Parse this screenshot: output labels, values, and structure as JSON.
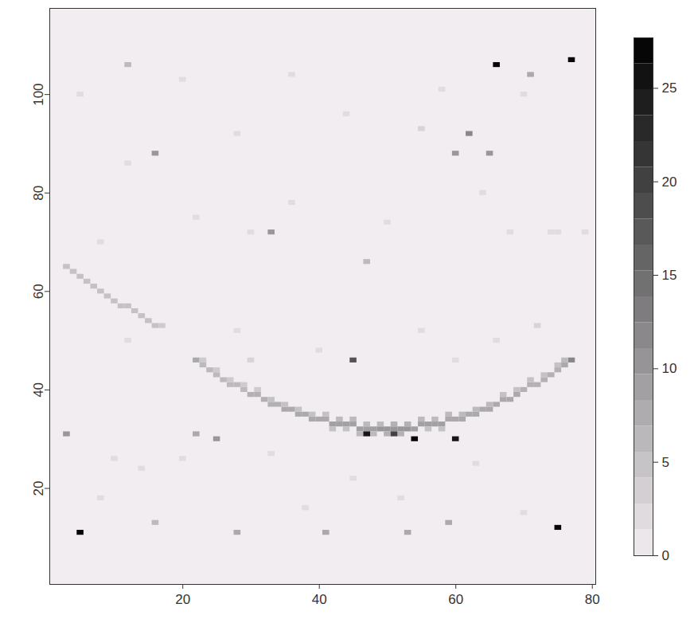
{
  "chart_data": {
    "type": "heatmap",
    "xlim": [
      0.5,
      80.5
    ],
    "ylim": [
      0.5,
      117.5
    ],
    "xticks": [
      20,
      40,
      60,
      80
    ],
    "yticks": [
      20,
      40,
      60,
      80,
      100
    ],
    "colorbar_lim": [
      0,
      27.7
    ],
    "colorbar_ticks": [
      0,
      5,
      10,
      15,
      20,
      25
    ],
    "cells": [
      [
        22,
        46,
        8
      ],
      [
        23,
        45,
        6
      ],
      [
        24,
        44,
        6
      ],
      [
        25,
        43,
        6
      ],
      [
        26,
        42,
        6
      ],
      [
        27,
        41,
        6
      ],
      [
        28,
        41,
        6
      ],
      [
        29,
        40,
        6
      ],
      [
        30,
        39,
        7
      ],
      [
        31,
        39,
        7
      ],
      [
        32,
        38,
        7
      ],
      [
        33,
        37,
        7
      ],
      [
        34,
        37,
        7
      ],
      [
        35,
        36,
        8
      ],
      [
        36,
        36,
        8
      ],
      [
        37,
        35,
        8
      ],
      [
        38,
        35,
        8
      ],
      [
        39,
        34,
        8
      ],
      [
        40,
        34,
        8
      ],
      [
        41,
        34,
        8
      ],
      [
        42,
        33,
        9
      ],
      [
        43,
        33,
        9
      ],
      [
        44,
        33,
        9
      ],
      [
        45,
        33,
        9
      ],
      [
        46,
        32,
        9
      ],
      [
        47,
        32,
        9
      ],
      [
        48,
        32,
        9
      ],
      [
        49,
        32,
        10
      ],
      [
        50,
        32,
        10
      ],
      [
        51,
        32,
        10
      ],
      [
        52,
        32,
        10
      ],
      [
        53,
        32,
        10
      ],
      [
        54,
        32,
        9
      ],
      [
        55,
        33,
        9
      ],
      [
        56,
        33,
        9
      ],
      [
        57,
        33,
        9
      ],
      [
        58,
        33,
        9
      ],
      [
        59,
        34,
        8
      ],
      [
        60,
        34,
        8
      ],
      [
        61,
        34,
        8
      ],
      [
        62,
        35,
        8
      ],
      [
        63,
        35,
        8
      ],
      [
        64,
        36,
        8
      ],
      [
        65,
        36,
        8
      ],
      [
        66,
        37,
        8
      ],
      [
        67,
        38,
        8
      ],
      [
        68,
        38,
        8
      ],
      [
        69,
        39,
        8
      ],
      [
        70,
        40,
        7
      ],
      [
        71,
        41,
        7
      ],
      [
        72,
        41,
        7
      ],
      [
        73,
        42,
        7
      ],
      [
        74,
        43,
        7
      ],
      [
        75,
        44,
        7
      ],
      [
        76,
        45,
        8
      ],
      [
        77,
        46,
        12
      ],
      [
        23,
        46,
        4
      ],
      [
        25,
        44,
        4
      ],
      [
        27,
        42,
        4
      ],
      [
        29,
        41,
        4
      ],
      [
        31,
        40,
        4
      ],
      [
        33,
        38,
        5
      ],
      [
        35,
        37,
        5
      ],
      [
        37,
        36,
        5
      ],
      [
        39,
        35,
        5
      ],
      [
        41,
        35,
        5
      ],
      [
        43,
        34,
        6
      ],
      [
        45,
        34,
        6
      ],
      [
        47,
        33,
        6
      ],
      [
        49,
        33,
        6
      ],
      [
        51,
        33,
        7
      ],
      [
        53,
        33,
        7
      ],
      [
        55,
        34,
        6
      ],
      [
        57,
        34,
        6
      ],
      [
        59,
        35,
        6
      ],
      [
        61,
        35,
        6
      ],
      [
        63,
        36,
        6
      ],
      [
        65,
        37,
        6
      ],
      [
        67,
        39,
        5
      ],
      [
        69,
        40,
        5
      ],
      [
        71,
        42,
        5
      ],
      [
        73,
        43,
        5
      ],
      [
        75,
        45,
        5
      ],
      [
        76,
        46,
        6
      ],
      [
        42,
        32,
        5
      ],
      [
        44,
        32,
        5
      ],
      [
        46,
        31,
        6
      ],
      [
        48,
        31,
        6
      ],
      [
        50,
        31,
        7
      ],
      [
        52,
        31,
        7
      ],
      [
        56,
        32,
        5
      ],
      [
        58,
        32,
        5
      ],
      [
        3,
        65,
        5
      ],
      [
        4,
        64,
        5
      ],
      [
        5,
        63,
        5
      ],
      [
        6,
        62,
        5
      ],
      [
        7,
        61,
        5
      ],
      [
        8,
        60,
        5
      ],
      [
        9,
        59,
        5
      ],
      [
        10,
        58,
        5
      ],
      [
        11,
        57,
        5
      ],
      [
        12,
        57,
        5
      ],
      [
        13,
        56,
        5
      ],
      [
        14,
        55,
        5
      ],
      [
        15,
        54,
        5
      ],
      [
        16,
        53,
        5
      ],
      [
        17,
        53,
        4
      ],
      [
        5,
        11,
        27
      ],
      [
        75,
        12,
        27
      ],
      [
        66,
        106,
        27
      ],
      [
        77,
        107,
        27
      ],
      [
        47,
        31,
        25
      ],
      [
        54,
        30,
        27
      ],
      [
        60,
        30,
        25
      ],
      [
        51,
        31,
        20
      ],
      [
        45,
        46,
        18
      ],
      [
        62,
        92,
        12
      ],
      [
        33,
        72,
        10
      ],
      [
        16,
        88,
        10
      ],
      [
        60,
        88,
        10
      ],
      [
        65,
        88,
        10
      ],
      [
        3,
        31,
        10
      ],
      [
        25,
        30,
        10
      ],
      [
        22,
        31,
        8
      ],
      [
        28,
        11,
        8
      ],
      [
        41,
        11,
        8
      ],
      [
        53,
        11,
        8
      ],
      [
        16,
        13,
        6
      ],
      [
        59,
        13,
        8
      ],
      [
        71,
        104,
        8
      ],
      [
        12,
        106,
        6
      ],
      [
        47,
        66,
        6
      ],
      [
        10,
        26,
        2
      ],
      [
        14,
        24,
        2
      ],
      [
        20,
        26,
        2
      ],
      [
        33,
        27,
        2
      ],
      [
        45,
        22,
        2
      ],
      [
        52,
        18,
        2
      ],
      [
        63,
        25,
        2
      ],
      [
        70,
        15,
        2
      ],
      [
        8,
        18,
        2
      ],
      [
        38,
        16,
        2
      ],
      [
        12,
        50,
        2
      ],
      [
        28,
        52,
        2
      ],
      [
        40,
        48,
        2
      ],
      [
        55,
        52,
        2
      ],
      [
        66,
        50,
        2
      ],
      [
        72,
        53,
        3
      ],
      [
        30,
        46,
        3
      ],
      [
        60,
        46,
        2
      ],
      [
        8,
        70,
        2
      ],
      [
        22,
        75,
        2
      ],
      [
        36,
        78,
        2
      ],
      [
        50,
        74,
        2
      ],
      [
        64,
        80,
        2
      ],
      [
        74,
        72,
        2
      ],
      [
        12,
        86,
        2
      ],
      [
        28,
        92,
        2
      ],
      [
        44,
        96,
        2
      ],
      [
        55,
        93,
        3
      ],
      [
        70,
        100,
        2
      ],
      [
        20,
        103,
        2
      ],
      [
        36,
        104,
        2
      ],
      [
        58,
        101,
        2
      ],
      [
        5,
        100,
        2
      ],
      [
        30,
        72,
        2
      ],
      [
        68,
        72,
        2
      ],
      [
        75,
        72,
        2
      ],
      [
        79,
        72,
        2
      ]
    ]
  }
}
